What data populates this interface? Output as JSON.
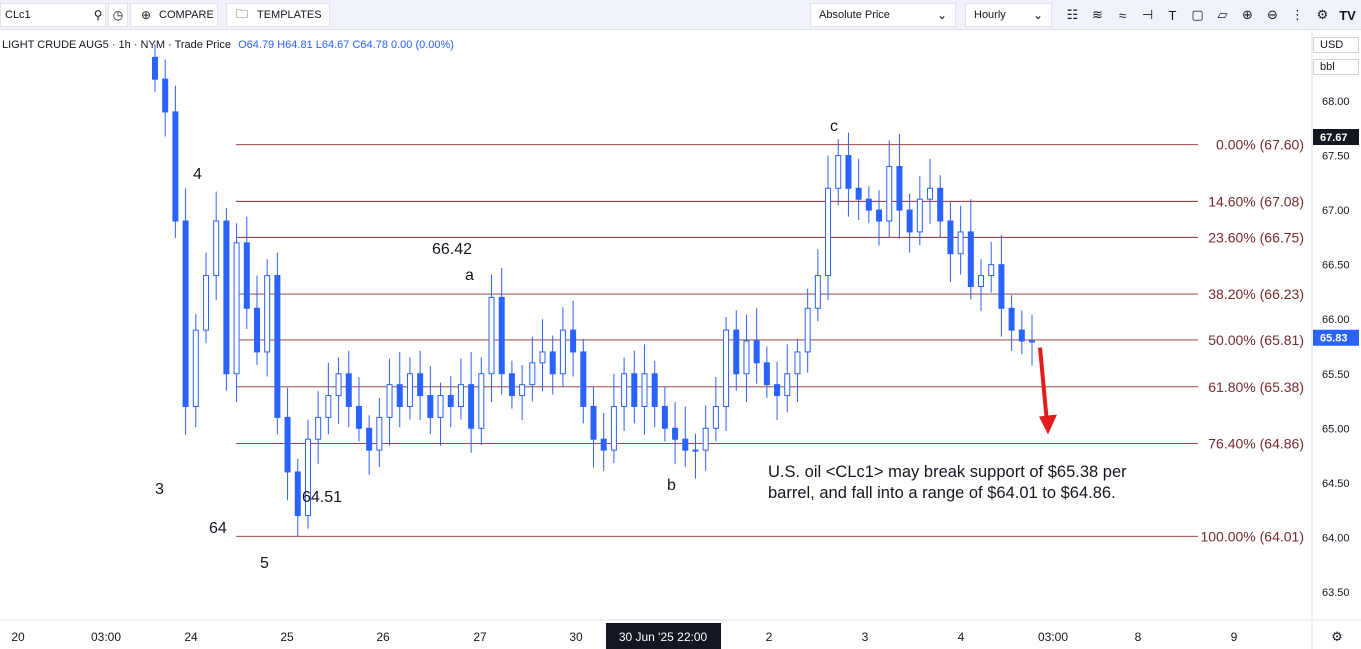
{
  "toolbar": {
    "symbol": "CLc1",
    "compare_label": "COMPARE",
    "templates_label": "TEMPLATES",
    "scale_mode": "Absolute Price",
    "interval": "Hourly",
    "icons": [
      "search-icon",
      "clock-icon",
      "plus-circle-icon",
      "folder-icon",
      "candle-icon",
      "indicator-icon",
      "waves-icon",
      "crosshair-icon",
      "text-icon",
      "measure-icon",
      "trend-icon",
      "zoom-in-icon",
      "zoom-out-icon",
      "more-icon",
      "gear-icon",
      "tradingview-logo-icon"
    ]
  },
  "legend": {
    "title": "LIGHT CRUDE AUG5 · 1h · NYM · Trade Price",
    "ohlc": "O64.79 H64.81 L64.67 C64.78 0.00 (0.00%)"
  },
  "price_axis": {
    "currency": "USD",
    "unit": "bbl",
    "ticks": [
      "68.00",
      "67.50",
      "67.00",
      "66.50",
      "66.00",
      "65.50",
      "65.00",
      "64.50",
      "64.00",
      "63.50"
    ],
    "last_price_label": "67.67",
    "current_price_label": "65.83"
  },
  "time_axis": {
    "ticks": [
      "20",
      "03:00",
      "24",
      "25",
      "26",
      "27",
      "30",
      "2",
      "3",
      "4",
      "03:00",
      "8",
      "9"
    ],
    "cursor_label": "30 Jun '25   22:00"
  },
  "annotations": {
    "wave_labels": [
      "3",
      "4",
      "64",
      "5",
      "64.51",
      "66.42",
      "a",
      "b",
      "c"
    ],
    "note_line1": "U.S. oil <CLc1> may break support of $65.38 per",
    "note_line2": "barrel, and fall into a range of $64.01 to $64.86."
  },
  "colors": {
    "up_candle": "#2962ff",
    "fib_line": "#8b2e2e",
    "fib_text": "#7b2a2a",
    "arrow": "#e31b1b",
    "price_badge": "#2962ff",
    "last_badge": "#131722"
  },
  "chart_data": {
    "type": "candlestick",
    "symbol": "CLc1",
    "interval": "1h",
    "ylim": [
      63.3,
      68.3
    ],
    "fib_levels": [
      {
        "label": "0.00% (67.60)",
        "price": 67.6
      },
      {
        "label": "14.60% (67.08)",
        "price": 67.08
      },
      {
        "label": "23.60% (66.75)",
        "price": 66.75
      },
      {
        "label": "38.20% (66.23)",
        "price": 66.23
      },
      {
        "label": "50.00% (65.81)",
        "price": 65.81
      },
      {
        "label": "61.80% (65.38)",
        "price": 65.38
      },
      {
        "label": "76.40% (64.86)",
        "price": 64.86
      },
      {
        "label": "100.00% (64.01)",
        "price": 64.01
      }
    ],
    "key_points": [
      {
        "label": "3",
        "price": 64.5
      },
      {
        "label": "4",
        "price": 67.1
      },
      {
        "label": "5",
        "price": 64.01
      },
      {
        "label": "64.51",
        "price": 64.51
      },
      {
        "label": "a",
        "price": 66.42
      },
      {
        "label": "b",
        "price": 64.7
      },
      {
        "label": "c",
        "price": 67.6
      }
    ],
    "closes": [
      68.2,
      67.9,
      66.9,
      65.2,
      65.9,
      66.4,
      66.9,
      65.5,
      66.7,
      66.1,
      65.7,
      66.4,
      65.1,
      64.6,
      64.2,
      64.9,
      65.1,
      65.3,
      65.5,
      65.2,
      65.0,
      64.8,
      65.1,
      65.4,
      65.2,
      65.5,
      65.3,
      65.1,
      65.3,
      65.2,
      65.4,
      65.0,
      65.5,
      66.2,
      65.5,
      65.3,
      65.4,
      65.6,
      65.7,
      65.5,
      65.9,
      65.7,
      65.2,
      64.9,
      64.8,
      65.2,
      65.5,
      65.2,
      65.5,
      65.2,
      65.0,
      64.9,
      64.8,
      64.8,
      65.0,
      65.2,
      65.9,
      65.5,
      65.8,
      65.6,
      65.4,
      65.3,
      65.5,
      65.7,
      66.1,
      66.4,
      67.2,
      67.5,
      67.2,
      67.1,
      67.0,
      66.9,
      67.4,
      67.0,
      66.8,
      67.1,
      67.2,
      66.9,
      66.6,
      66.8,
      66.3,
      66.4,
      66.5,
      66.1,
      65.9,
      65.8,
      65.8
    ]
  }
}
